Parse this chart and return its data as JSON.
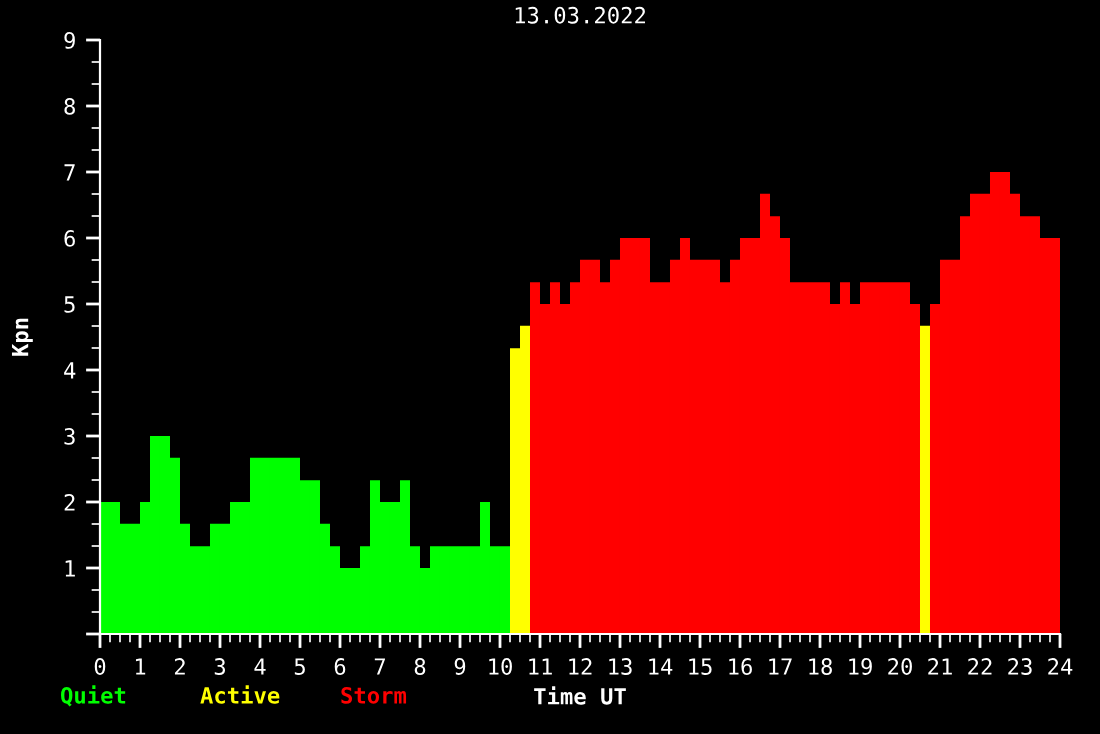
{
  "chart_data": {
    "type": "histogram",
    "title": "13.03.2022",
    "xlabel": "Time UT",
    "ylabel": "Kpn",
    "bins": [
      0,
      0.25,
      0.5,
      0.75,
      1,
      1.25,
      1.5,
      1.75,
      2,
      2.25,
      2.5,
      2.75,
      3,
      3.25,
      3.5,
      3.75,
      4,
      4.25,
      4.5,
      4.75,
      5,
      5.25,
      5.5,
      5.75,
      6,
      6.25,
      6.5,
      6.75,
      7,
      7.25,
      7.5,
      7.75,
      8,
      8.25,
      8.5,
      8.75,
      9,
      9.25,
      9.5,
      9.75,
      10,
      10.25,
      10.5,
      10.75,
      11,
      11.25,
      11.5,
      11.75,
      12,
      12.25,
      12.5,
      12.75,
      13,
      13.25,
      13.5,
      13.75,
      14,
      14.25,
      14.5,
      14.75,
      15,
      15.25,
      15.5,
      15.75,
      16,
      16.25,
      16.5,
      16.75,
      17,
      17.25,
      17.5,
      17.75,
      18,
      18.25,
      18.5,
      18.75,
      19,
      19.25,
      19.5,
      19.75,
      20,
      20.25,
      20.5,
      20.75,
      21,
      21.25,
      21.5,
      21.75,
      22,
      22.25,
      22.5,
      22.75,
      23,
      23.25,
      23.5,
      23.75,
      24
    ],
    "series": [
      {
        "name": "Quiet",
        "color": "#00ff00",
        "values": [
          2,
          2,
          1.67,
          1.67,
          2,
          3,
          3,
          2.67,
          1.67,
          1.33,
          1.33,
          1.67,
          1.67,
          2,
          2,
          2.67,
          2.67,
          2.67,
          2.67,
          2.67,
          2.33,
          2.33,
          1.67,
          1.33,
          1,
          1,
          1.33,
          2.33,
          2,
          2,
          2.33,
          1.33,
          1,
          1.33,
          1.33,
          1.33,
          1.33,
          1.33,
          2,
          1.33,
          1.33,
          null,
          null,
          null,
          null,
          null,
          null,
          null,
          null,
          null,
          null,
          null,
          null,
          null,
          null,
          null,
          null,
          null,
          null,
          null,
          null,
          null,
          null,
          null,
          null,
          null,
          null,
          null,
          null,
          null,
          null,
          null,
          null,
          null,
          null,
          null,
          null,
          null,
          null,
          null,
          null,
          null,
          null,
          null,
          null,
          null,
          null,
          null,
          null,
          null,
          null,
          null,
          null,
          null,
          null,
          null
        ]
      },
      {
        "name": "Active",
        "color": "#ffff00",
        "values": [
          null,
          null,
          null,
          null,
          null,
          null,
          null,
          null,
          null,
          null,
          null,
          null,
          null,
          null,
          null,
          null,
          null,
          null,
          null,
          null,
          null,
          null,
          null,
          null,
          null,
          null,
          null,
          null,
          null,
          null,
          null,
          null,
          null,
          null,
          null,
          null,
          null,
          null,
          null,
          null,
          null,
          4.33,
          4.67,
          null,
          null,
          null,
          null,
          null,
          null,
          null,
          null,
          null,
          null,
          null,
          null,
          null,
          null,
          null,
          null,
          null,
          null,
          null,
          null,
          null,
          null,
          null,
          null,
          null,
          null,
          null,
          null,
          null,
          null,
          null,
          null,
          null,
          null,
          null,
          null,
          null,
          null,
          null,
          4.67,
          null,
          null,
          null,
          null,
          null,
          null,
          null,
          null,
          null,
          null,
          null,
          null,
          null
        ]
      },
      {
        "name": "Storm",
        "color": "#ff0000",
        "values": [
          null,
          null,
          null,
          null,
          null,
          null,
          null,
          null,
          null,
          null,
          null,
          null,
          null,
          null,
          null,
          null,
          null,
          null,
          null,
          null,
          null,
          null,
          null,
          null,
          null,
          null,
          null,
          null,
          null,
          null,
          null,
          null,
          null,
          null,
          null,
          null,
          null,
          null,
          null,
          null,
          null,
          null,
          null,
          5.33,
          5,
          5.33,
          5,
          5.33,
          5.67,
          5.67,
          5.33,
          5.67,
          6,
          6,
          6,
          5.33,
          5.33,
          5.67,
          6,
          5.67,
          5.67,
          5.67,
          5.33,
          5.67,
          6,
          6,
          6.67,
          6.33,
          6,
          5.33,
          5.33,
          5.33,
          5.33,
          5,
          5.33,
          5,
          5.33,
          5.33,
          5.33,
          5.33,
          5.33,
          5,
          null,
          5,
          5.67,
          5.67,
          6.33,
          6.67,
          6.67,
          7,
          7,
          6.67,
          6.33,
          6.33,
          6,
          6
        ]
      }
    ],
    "xlim": [
      0,
      24
    ],
    "xticks": [
      0,
      1,
      2,
      3,
      4,
      5,
      6,
      7,
      8,
      9,
      10,
      11,
      12,
      13,
      14,
      15,
      16,
      17,
      18,
      19,
      20,
      21,
      22,
      23,
      24
    ],
    "ylim": [
      0,
      9
    ],
    "yticks": [
      {
        "value": 0,
        "label": null
      },
      1,
      2,
      3,
      4,
      5,
      6,
      7,
      8,
      9
    ],
    "legend": "bottom left",
    "grid": false
  }
}
